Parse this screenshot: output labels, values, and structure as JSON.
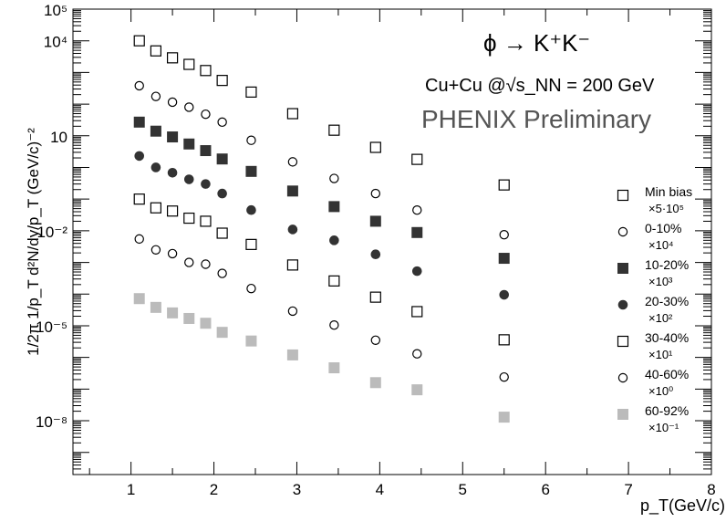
{
  "chart_data": {
    "type": "scatter",
    "title": "ϕ → K⁺K⁻",
    "subtitle": "Cu+Cu @√s_NN = 200 GeV",
    "watermark": "PHENIX Preliminary",
    "xlabel": "p_T(GeV/c)",
    "ylabel": "1/2π 1/p_T d²N/dy/p_T (GeV/c)⁻²",
    "xlim": [
      0.3,
      8
    ],
    "ylim": [
      2e-10,
      100000.0
    ],
    "yscale": "log",
    "x_ticks": [
      "1",
      "2",
      "3",
      "4",
      "5",
      "6",
      "7",
      "8"
    ],
    "y_ticks": [
      "10⁵",
      "10⁴",
      "10",
      "10⁻²",
      "10⁻⁵",
      "10⁻⁸"
    ],
    "grid": false,
    "legend_position": "right",
    "x": [
      1.1,
      1.3,
      1.5,
      1.7,
      1.9,
      2.1,
      2.45,
      2.95,
      3.45,
      3.95,
      4.45,
      5.5
    ],
    "series": [
      {
        "name": "Min bias",
        "scale": "×5·10⁵",
        "marker": "open-square",
        "color": "#000000",
        "values": [
          10000,
          4800,
          2900,
          1800,
          1150,
          560,
          240,
          50,
          15,
          4.3,
          1.8,
          0.28
        ]
      },
      {
        "name": "0-10%",
        "scale": "×10⁴",
        "marker": "open-circle",
        "color": "#000000",
        "values": [
          380,
          175,
          115,
          80,
          48,
          27,
          7.2,
          1.5,
          0.45,
          0.15,
          0.045,
          0.0075
        ]
      },
      {
        "name": "10-20%",
        "scale": "×10³",
        "marker": "filled-square",
        "color": "#333333",
        "values": [
          27,
          14,
          9.2,
          5.5,
          3.4,
          1.85,
          0.75,
          0.18,
          0.058,
          0.02,
          0.0088,
          0.00135
        ]
      },
      {
        "name": "20-30%",
        "scale": "×10²",
        "marker": "filled-circle",
        "color": "#333333",
        "values": [
          2.3,
          1.0,
          0.68,
          0.42,
          0.3,
          0.15,
          0.045,
          0.011,
          0.005,
          0.0018,
          0.00053,
          9.5e-05
        ]
      },
      {
        "name": "30-40%",
        "scale": "×10¹",
        "marker": "open-square",
        "color": "#000000",
        "values": [
          0.1,
          0.053,
          0.042,
          0.025,
          0.02,
          0.0084,
          0.0037,
          0.00083,
          0.00026,
          8e-05,
          2.8e-05,
          3.6e-06
        ]
      },
      {
        "name": "40-60%",
        "scale": "×10⁰",
        "marker": "open-circle",
        "color": "#000000",
        "values": [
          0.0055,
          0.0025,
          0.0019,
          0.001,
          0.00088,
          0.00045,
          0.00015,
          2.9e-05,
          1.05e-05,
          3.5e-06,
          1.3e-06,
          2.4e-07
        ]
      },
      {
        "name": "60-92%",
        "scale": "×10⁻¹",
        "marker": "filled-square",
        "color": "#bbbbbb",
        "values": [
          7.2e-05,
          3.8e-05,
          2.55e-05,
          1.7e-05,
          1.2e-05,
          6.2e-06,
          3.3e-06,
          1.2e-06,
          4.7e-07,
          1.6e-07,
          9.5e-08,
          1.3e-08
        ]
      }
    ]
  }
}
